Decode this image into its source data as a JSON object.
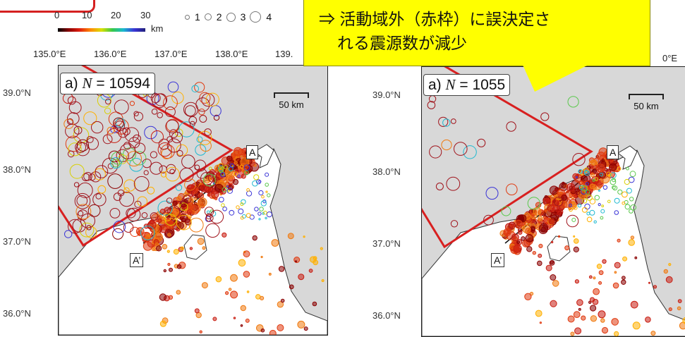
{
  "legend": {
    "depth_ticks": [
      "0",
      "10",
      "20",
      "30"
    ],
    "depth_unit": "km",
    "magnitude_labels": [
      "1",
      "2",
      "3",
      "4"
    ]
  },
  "callout": {
    "line1": "⇒ 活動域外（赤枠）に誤決定さ",
    "line2": "れる震源数が減少"
  },
  "longitude_labels": [
    "135.0°E",
    "136.0°E",
    "137.0°E",
    "138.0°E",
    "139."
  ],
  "right_partial_longitude": "0°E",
  "latitude_labels": [
    "39.0°N",
    "38.0°N",
    "37.0°N",
    "36.0°N"
  ],
  "panels": [
    {
      "label_prefix": "a)",
      "n_var": "N",
      "eq": " = ",
      "count": "10594",
      "scale": "50 km",
      "end_a": "A",
      "end_b": "A’"
    },
    {
      "label_prefix": "a)",
      "n_var": "N",
      "eq": " = ",
      "count": "1055",
      "scale": "50 km",
      "end_a": "A",
      "end_b": "A’"
    }
  ],
  "colors": {
    "bounding_box": "#d82020",
    "callout_bg": "#ffff00"
  }
}
